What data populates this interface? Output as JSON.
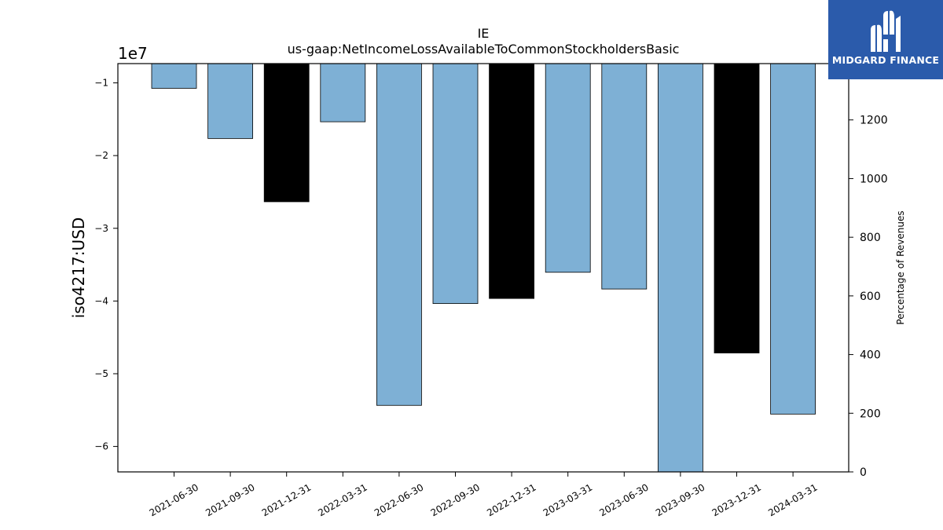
{
  "chart_data": {
    "type": "bar",
    "title": "IE",
    "subtitle": "us-gaap:NetIncomeLossAvailableToCommonStockholdersBasic",
    "ylabel": "iso4217:USD",
    "y_scale_label": "1e7",
    "y2label": "Percentage of Revenues",
    "categories": [
      "2021-06-30",
      "2021-09-30",
      "2021-12-31",
      "2022-03-31",
      "2022-06-30",
      "2022-09-30",
      "2022-12-31",
      "2023-03-31",
      "2023-06-30",
      "2023-09-30",
      "2023-12-31",
      "2024-03-31"
    ],
    "values": [
      -10750000,
      -17650000,
      -26350000,
      -15350000,
      -54350000,
      -40350000,
      -39650000,
      -36050000,
      -38350000,
      -63500000,
      -47150000,
      -55550000
    ],
    "bar_colors": [
      "#7eb0d5",
      "#7eb0d5",
      "#000000",
      "#7eb0d5",
      "#7eb0d5",
      "#7eb0d5",
      "#000000",
      "#7eb0d5",
      "#7eb0d5",
      "#7eb0d5",
      "#000000",
      "#7eb0d5"
    ],
    "ylim": [
      -63500000,
      -7350000
    ],
    "yticks": [
      -10000000,
      -20000000,
      -30000000,
      -40000000,
      -50000000,
      -60000000
    ],
    "ytick_labels": [
      "−1",
      "−2",
      "−3",
      "−4",
      "−5",
      "−6"
    ],
    "y2lim": [
      0,
      1392
    ],
    "y2ticks": [
      0,
      200,
      400,
      600,
      800,
      1000,
      1200
    ],
    "y2tick_labels": [
      "0",
      "200",
      "400",
      "600",
      "800",
      "1000",
      "1200"
    ],
    "grid": false
  },
  "logo": {
    "text": "MIDGARD FINANCE",
    "color": "#2b5bab"
  }
}
